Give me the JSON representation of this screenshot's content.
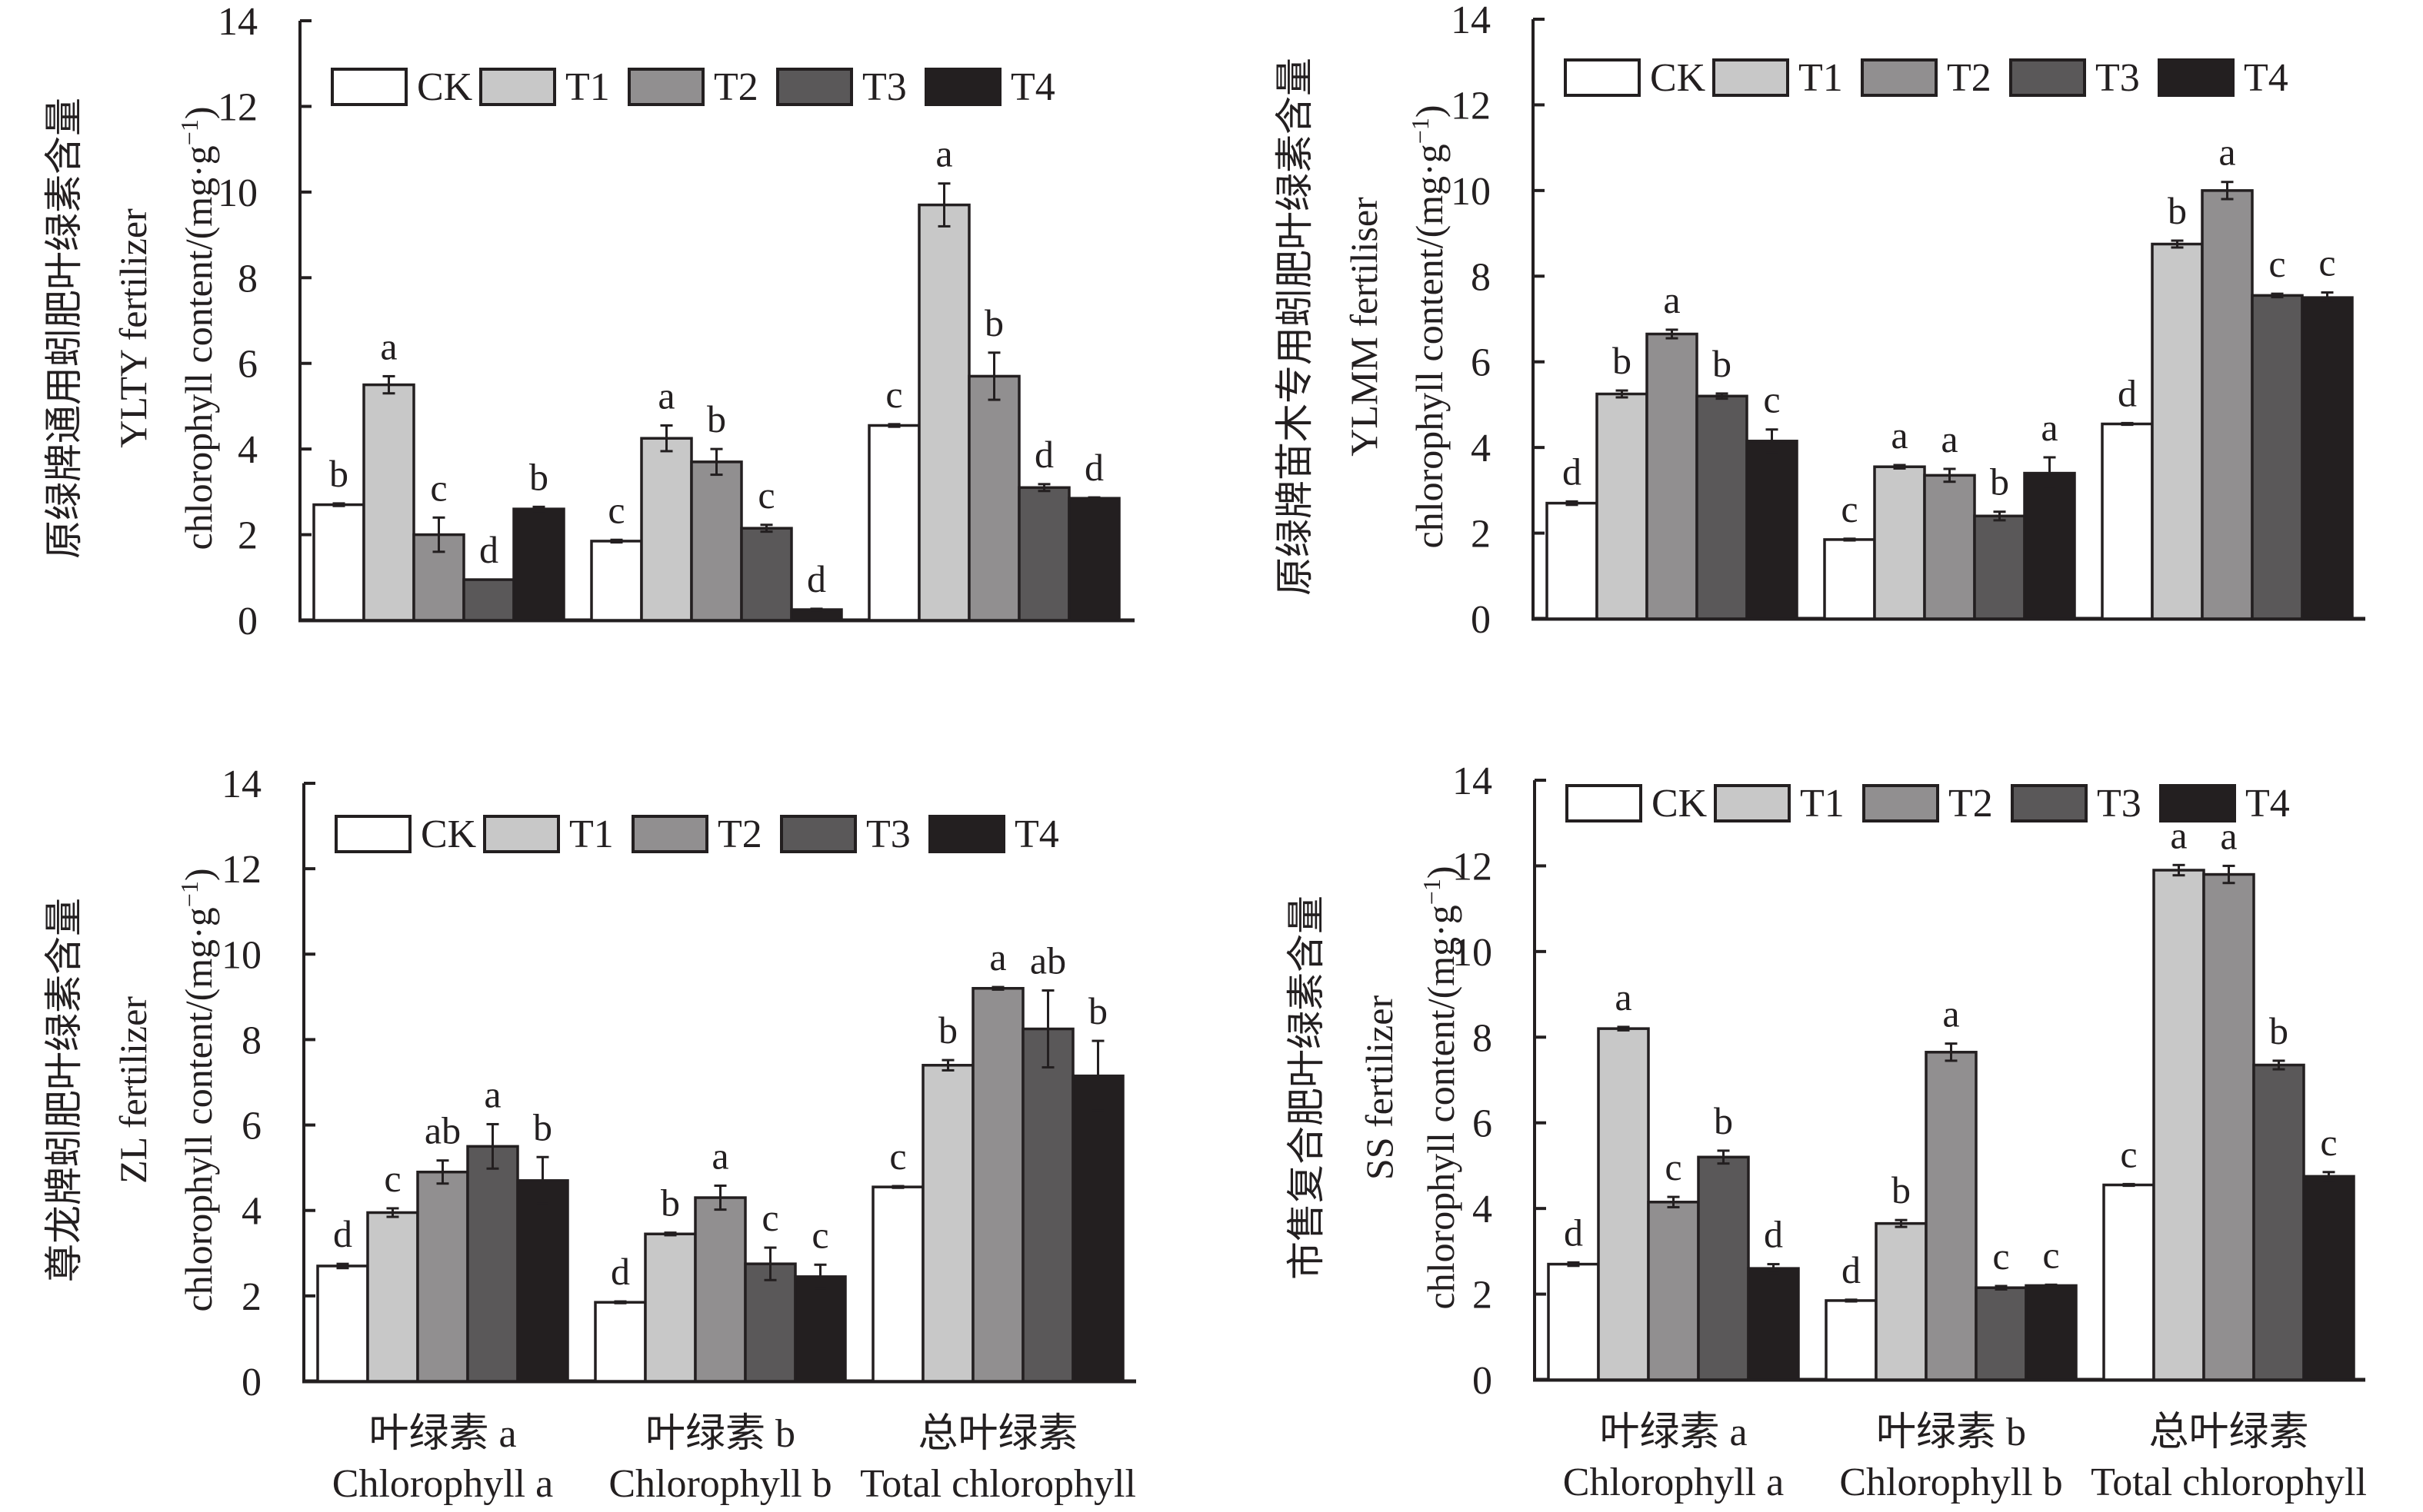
{
  "colors": {
    "CK": "#ffffff",
    "T1": "#c8c8c8",
    "T2": "#918f90",
    "T3": "#5a5859",
    "T4": "#231f20",
    "axis": "#231f20"
  },
  "legend": [
    "CK",
    "T1",
    "T2",
    "T3",
    "T4"
  ],
  "x_labels": [
    {
      "cn": "叶绿素 a",
      "en": "Chlorophyll a"
    },
    {
      "cn": "叶绿素 b",
      "en": "Chlorophyll b"
    },
    {
      "cn": "总叶绿素",
      "en": "Total chlorophyll"
    }
  ],
  "chart_data": [
    {
      "type": "bar",
      "ylabel_cn": "原绿牌通用蚓肥叶绿素含量",
      "ylabel_en1": "YLTY fertilizer",
      "ylabel_en2": "chlorophyll content/(mg·g",
      "ylabel_sup": "−1",
      "ylabel_end": ")",
      "ylim": [
        0,
        14
      ],
      "yticks": [
        "0",
        "2",
        "4",
        "6",
        "8",
        "10",
        "12",
        "14"
      ],
      "categories": [
        "叶绿素 a Chlorophyll a",
        "叶绿素 b Chlorophyll b",
        "总叶绿素 Total chlorophyll"
      ],
      "show_xlabels": false,
      "series": [
        {
          "name": "CK",
          "values": [
            2.7,
            1.85,
            4.55
          ],
          "errors": [
            0.03,
            0.03,
            0.03
          ],
          "letters": [
            "b",
            "c",
            "c"
          ]
        },
        {
          "name": "T1",
          "values": [
            5.5,
            4.25,
            9.7
          ],
          "errors": [
            0.2,
            0.3,
            0.5
          ],
          "letters": [
            "a",
            "a",
            "a"
          ]
        },
        {
          "name": "T2",
          "values": [
            2.0,
            3.7,
            5.7
          ],
          "errors": [
            0.4,
            0.3,
            0.55
          ],
          "letters": [
            "c",
            "b",
            "b"
          ]
        },
        {
          "name": "T3",
          "values": [
            0.95,
            2.15,
            3.1
          ],
          "errors": [
            0.0,
            0.08,
            0.08
          ],
          "letters": [
            "d",
            "c",
            "d"
          ]
        },
        {
          "name": "T4",
          "values": [
            2.6,
            0.25,
            2.85
          ],
          "errors": [
            0.05,
            0.02,
            0.02
          ],
          "letters": [
            "b",
            "d",
            "d"
          ]
        }
      ]
    },
    {
      "type": "bar",
      "ylabel_cn": "原绿牌苗木专用蚓肥叶绿素含量",
      "ylabel_en1": "YLMM fertiliser",
      "ylabel_en2": "chlorophyll content/(mg·g",
      "ylabel_sup": "−1",
      "ylabel_end": ")",
      "ylim": [
        0,
        14
      ],
      "yticks": [
        "0",
        "2",
        "4",
        "6",
        "8",
        "10",
        "12",
        "14"
      ],
      "categories": [
        "叶绿素 a Chlorophyll a",
        "叶绿素 b Chlorophyll b",
        "总叶绿素 Total chlorophyll"
      ],
      "show_xlabels": false,
      "series": [
        {
          "name": "CK",
          "values": [
            2.7,
            1.85,
            4.55
          ],
          "errors": [
            0.04,
            0.02,
            0.02
          ],
          "letters": [
            "d",
            "c",
            "d"
          ]
        },
        {
          "name": "T1",
          "values": [
            5.25,
            3.55,
            8.75
          ],
          "errors": [
            0.08,
            0.04,
            0.08
          ],
          "letters": [
            "b",
            "a",
            "b"
          ]
        },
        {
          "name": "T2",
          "values": [
            6.65,
            3.35,
            10.0
          ],
          "errors": [
            0.1,
            0.15,
            0.2
          ],
          "letters": [
            "a",
            "a",
            "a"
          ]
        },
        {
          "name": "T3",
          "values": [
            5.2,
            2.4,
            7.55
          ],
          "errors": [
            0.06,
            0.1,
            0.04
          ],
          "letters": [
            "b",
            "b",
            "c"
          ]
        },
        {
          "name": "T4",
          "values": [
            4.15,
            3.4,
            7.5
          ],
          "errors": [
            0.27,
            0.37,
            0.12
          ],
          "letters": [
            "c",
            "a",
            "c"
          ]
        }
      ]
    },
    {
      "type": "bar",
      "ylabel_cn": "尊龙牌蚓肥叶绿素含量",
      "ylabel_en1": "ZL fertilizer",
      "ylabel_en2": "chlorophyll content/(mg·g",
      "ylabel_sup": "−1",
      "ylabel_end": ")",
      "ylim": [
        0,
        14
      ],
      "yticks": [
        "0",
        "2",
        "4",
        "6",
        "8",
        "10",
        "12",
        "14"
      ],
      "categories": [
        "叶绿素 a Chlorophyll a",
        "叶绿素 b Chlorophyll b",
        "总叶绿素 Total chlorophyll"
      ],
      "show_xlabels": true,
      "series": [
        {
          "name": "CK",
          "values": [
            2.7,
            1.85,
            4.55
          ],
          "errors": [
            0.05,
            0.02,
            0.02
          ],
          "letters": [
            "d",
            "d",
            "c"
          ]
        },
        {
          "name": "T1",
          "values": [
            3.95,
            3.45,
            7.4
          ],
          "errors": [
            0.1,
            0.03,
            0.12
          ],
          "letters": [
            "c",
            "b",
            "b"
          ]
        },
        {
          "name": "T2",
          "values": [
            4.9,
            4.3,
            9.2
          ],
          "errors": [
            0.27,
            0.28,
            0.03
          ],
          "letters": [
            "ab",
            "a",
            "a"
          ]
        },
        {
          "name": "T3",
          "values": [
            5.5,
            2.75,
            8.25
          ],
          "errors": [
            0.52,
            0.38,
            0.9
          ],
          "letters": [
            "a",
            "c",
            "ab"
          ]
        },
        {
          "name": "T4",
          "values": [
            4.7,
            2.45,
            7.15
          ],
          "errors": [
            0.55,
            0.28,
            0.82
          ],
          "letters": [
            "b",
            "c",
            "b"
          ]
        }
      ]
    },
    {
      "type": "bar",
      "ylabel_cn": "市售复合肥叶绿素含量",
      "ylabel_en1": "SS fertilizer",
      "ylabel_en2": "chlorophyll content/(mg·g",
      "ylabel_sup": "−1",
      "ylabel_end": ")",
      "ylim": [
        0,
        14
      ],
      "yticks": [
        "0",
        "2",
        "4",
        "6",
        "8",
        "10",
        "12",
        "14"
      ],
      "categories": [
        "叶绿素 a Chlorophyll a",
        "叶绿素 b Chlorophyll b",
        "总叶绿素 Total chlorophyll"
      ],
      "show_xlabels": true,
      "series": [
        {
          "name": "CK",
          "values": [
            2.7,
            1.85,
            4.55
          ],
          "errors": [
            0.04,
            0.02,
            0.02
          ],
          "letters": [
            "d",
            "d",
            "c"
          ]
        },
        {
          "name": "T1",
          "values": [
            8.2,
            3.65,
            11.9
          ],
          "errors": [
            0.04,
            0.08,
            0.12
          ],
          "letters": [
            "a",
            "b",
            "a"
          ]
        },
        {
          "name": "T2",
          "values": [
            4.15,
            7.65,
            11.8
          ],
          "errors": [
            0.12,
            0.2,
            0.2
          ],
          "letters": [
            "c",
            "a",
            "a"
          ]
        },
        {
          "name": "T3",
          "values": [
            5.2,
            2.15,
            7.35
          ],
          "errors": [
            0.15,
            0.04,
            0.1
          ],
          "letters": [
            "b",
            "c",
            "b"
          ]
        },
        {
          "name": "T4",
          "values": [
            2.6,
            2.2,
            4.75
          ],
          "errors": [
            0.1,
            0.02,
            0.1
          ],
          "letters": [
            "d",
            "c",
            "c"
          ]
        }
      ]
    }
  ]
}
